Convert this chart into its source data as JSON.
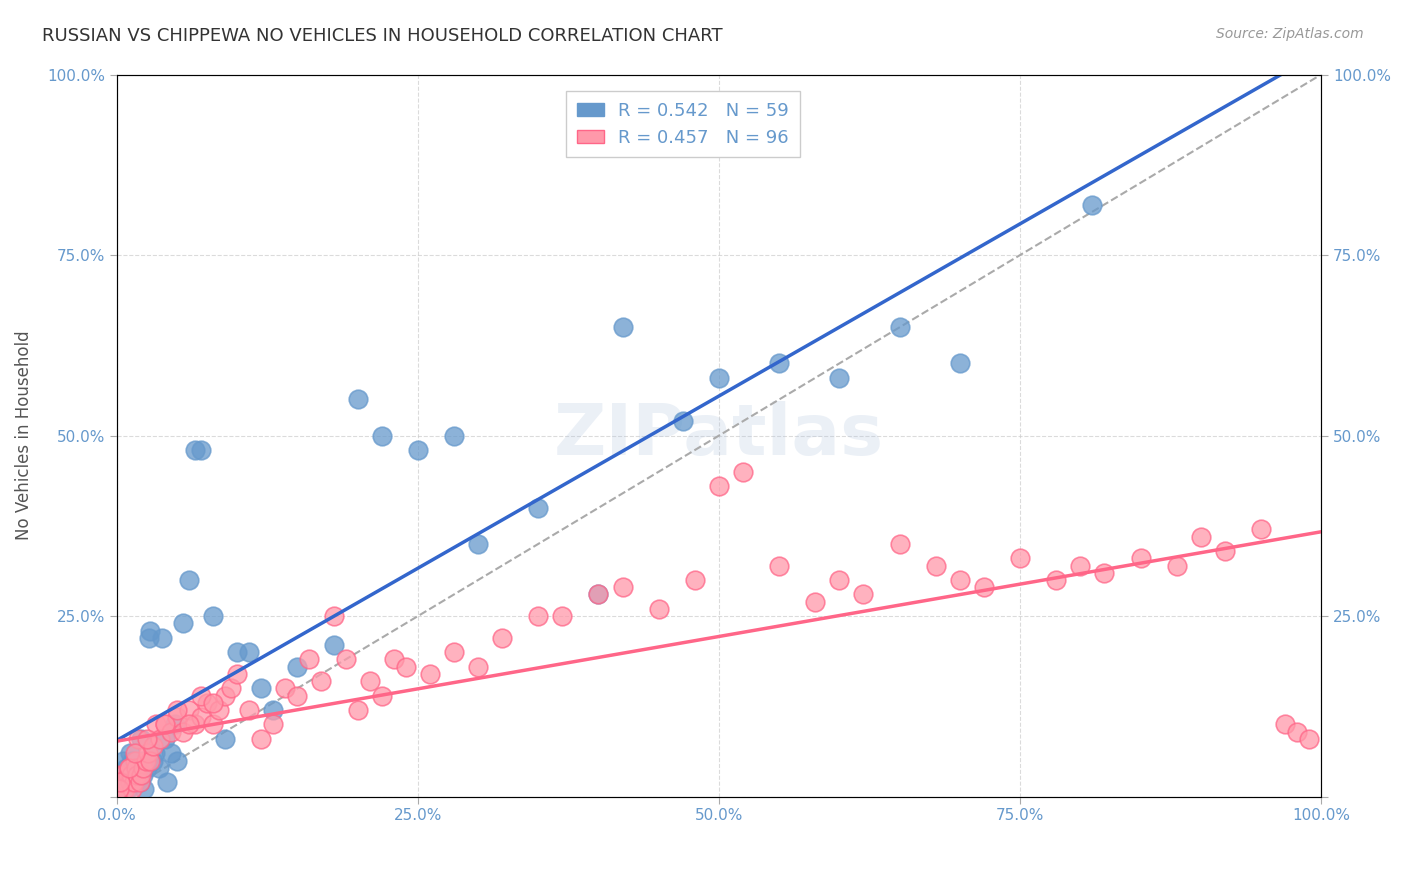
{
  "title": "RUSSIAN VS CHIPPEWA NO VEHICLES IN HOUSEHOLD CORRELATION CHART",
  "source": "Source: ZipAtlas.com",
  "ylabel": "No Vehicles in Household",
  "xlabel": "",
  "background_color": "#ffffff",
  "plot_bg_color": "#ffffff",
  "grid_color": "#cccccc",
  "title_color": "#333333",
  "source_color": "#999999",
  "axis_label_color": "#6699cc",
  "watermark": "ZIPatlas",
  "russians_color": "#6699cc",
  "russians_edge": "#6699cc",
  "chippewa_color": "#ff99aa",
  "chippewa_edge": "#ff6688",
  "russians_line_color": "#3366cc",
  "chippewa_line_color": "#ff6688",
  "dashed_line_color": "#aaaaaa",
  "R_russian": 0.542,
  "N_russian": 59,
  "R_chippewa": 0.457,
  "N_chippewa": 96,
  "russians_x": [
    0.001,
    0.003,
    0.005,
    0.007,
    0.008,
    0.009,
    0.01,
    0.011,
    0.012,
    0.013,
    0.014,
    0.015,
    0.016,
    0.017,
    0.018,
    0.019,
    0.02,
    0.021,
    0.022,
    0.023,
    0.025,
    0.027,
    0.028,
    0.03,
    0.032,
    0.035,
    0.038,
    0.04,
    0.042,
    0.045,
    0.048,
    0.05,
    0.055,
    0.06,
    0.065,
    0.07,
    0.08,
    0.09,
    0.1,
    0.11,
    0.12,
    0.13,
    0.15,
    0.18,
    0.2,
    0.22,
    0.25,
    0.28,
    0.3,
    0.35,
    0.4,
    0.42,
    0.47,
    0.5,
    0.55,
    0.6,
    0.65,
    0.7,
    0.81
  ],
  "russians_y": [
    0.02,
    0.03,
    0.05,
    0.03,
    0.04,
    0.01,
    0.02,
    0.06,
    0.03,
    0.05,
    0.04,
    0.02,
    0.03,
    0.03,
    0.04,
    0.02,
    0.08,
    0.05,
    0.03,
    0.01,
    0.04,
    0.22,
    0.23,
    0.05,
    0.06,
    0.04,
    0.22,
    0.08,
    0.02,
    0.06,
    0.1,
    0.05,
    0.24,
    0.3,
    0.48,
    0.48,
    0.25,
    0.08,
    0.2,
    0.2,
    0.15,
    0.12,
    0.18,
    0.21,
    0.55,
    0.5,
    0.48,
    0.5,
    0.35,
    0.4,
    0.28,
    0.65,
    0.52,
    0.58,
    0.6,
    0.58,
    0.65,
    0.6,
    0.82
  ],
  "chippewa_x": [
    0.001,
    0.002,
    0.003,
    0.004,
    0.005,
    0.006,
    0.007,
    0.008,
    0.009,
    0.01,
    0.011,
    0.012,
    0.013,
    0.014,
    0.015,
    0.016,
    0.017,
    0.018,
    0.019,
    0.02,
    0.022,
    0.024,
    0.026,
    0.028,
    0.03,
    0.033,
    0.036,
    0.04,
    0.045,
    0.05,
    0.055,
    0.06,
    0.065,
    0.07,
    0.075,
    0.08,
    0.085,
    0.09,
    0.095,
    0.1,
    0.11,
    0.12,
    0.13,
    0.14,
    0.15,
    0.16,
    0.17,
    0.18,
    0.19,
    0.2,
    0.21,
    0.22,
    0.23,
    0.24,
    0.26,
    0.28,
    0.3,
    0.32,
    0.35,
    0.37,
    0.4,
    0.42,
    0.45,
    0.48,
    0.5,
    0.52,
    0.55,
    0.58,
    0.6,
    0.62,
    0.65,
    0.68,
    0.7,
    0.72,
    0.75,
    0.78,
    0.8,
    0.82,
    0.85,
    0.88,
    0.9,
    0.92,
    0.95,
    0.97,
    0.98,
    0.99,
    0.002,
    0.003,
    0.01,
    0.015,
    0.025,
    0.04,
    0.05,
    0.06,
    0.07,
    0.08
  ],
  "chippewa_y": [
    0.02,
    0.03,
    0.01,
    0.02,
    0.03,
    0.02,
    0.01,
    0.02,
    0.03,
    0.04,
    0.02,
    0.03,
    0.01,
    0.02,
    0.05,
    0.04,
    0.03,
    0.08,
    0.02,
    0.03,
    0.04,
    0.05,
    0.06,
    0.05,
    0.07,
    0.1,
    0.08,
    0.1,
    0.09,
    0.11,
    0.09,
    0.12,
    0.1,
    0.11,
    0.13,
    0.1,
    0.12,
    0.14,
    0.15,
    0.17,
    0.12,
    0.08,
    0.1,
    0.15,
    0.14,
    0.19,
    0.16,
    0.25,
    0.19,
    0.12,
    0.16,
    0.14,
    0.19,
    0.18,
    0.17,
    0.2,
    0.18,
    0.22,
    0.25,
    0.25,
    0.28,
    0.29,
    0.26,
    0.3,
    0.43,
    0.45,
    0.32,
    0.27,
    0.3,
    0.28,
    0.35,
    0.32,
    0.3,
    0.29,
    0.33,
    0.3,
    0.32,
    0.31,
    0.33,
    0.32,
    0.36,
    0.34,
    0.37,
    0.1,
    0.09,
    0.08,
    0.01,
    0.02,
    0.04,
    0.06,
    0.08,
    0.1,
    0.12,
    0.1,
    0.14,
    0.13
  ],
  "xlim": [
    0.0,
    1.0
  ],
  "ylim": [
    0.0,
    1.0
  ],
  "xticks": [
    0.0,
    0.25,
    0.5,
    0.75,
    1.0
  ],
  "yticks": [
    0.0,
    0.25,
    0.5,
    0.75,
    1.0
  ],
  "xtick_labels": [
    "0.0%",
    "25.0%",
    "50.0%",
    "75.0%",
    "100.0%"
  ],
  "ytick_labels_left": [
    "",
    "25.0%",
    "50.0%",
    "75.0%",
    "100.0%"
  ],
  "ytick_labels_right": [
    "",
    "25.0%",
    "50.0%",
    "75.0%",
    "100.0%"
  ]
}
